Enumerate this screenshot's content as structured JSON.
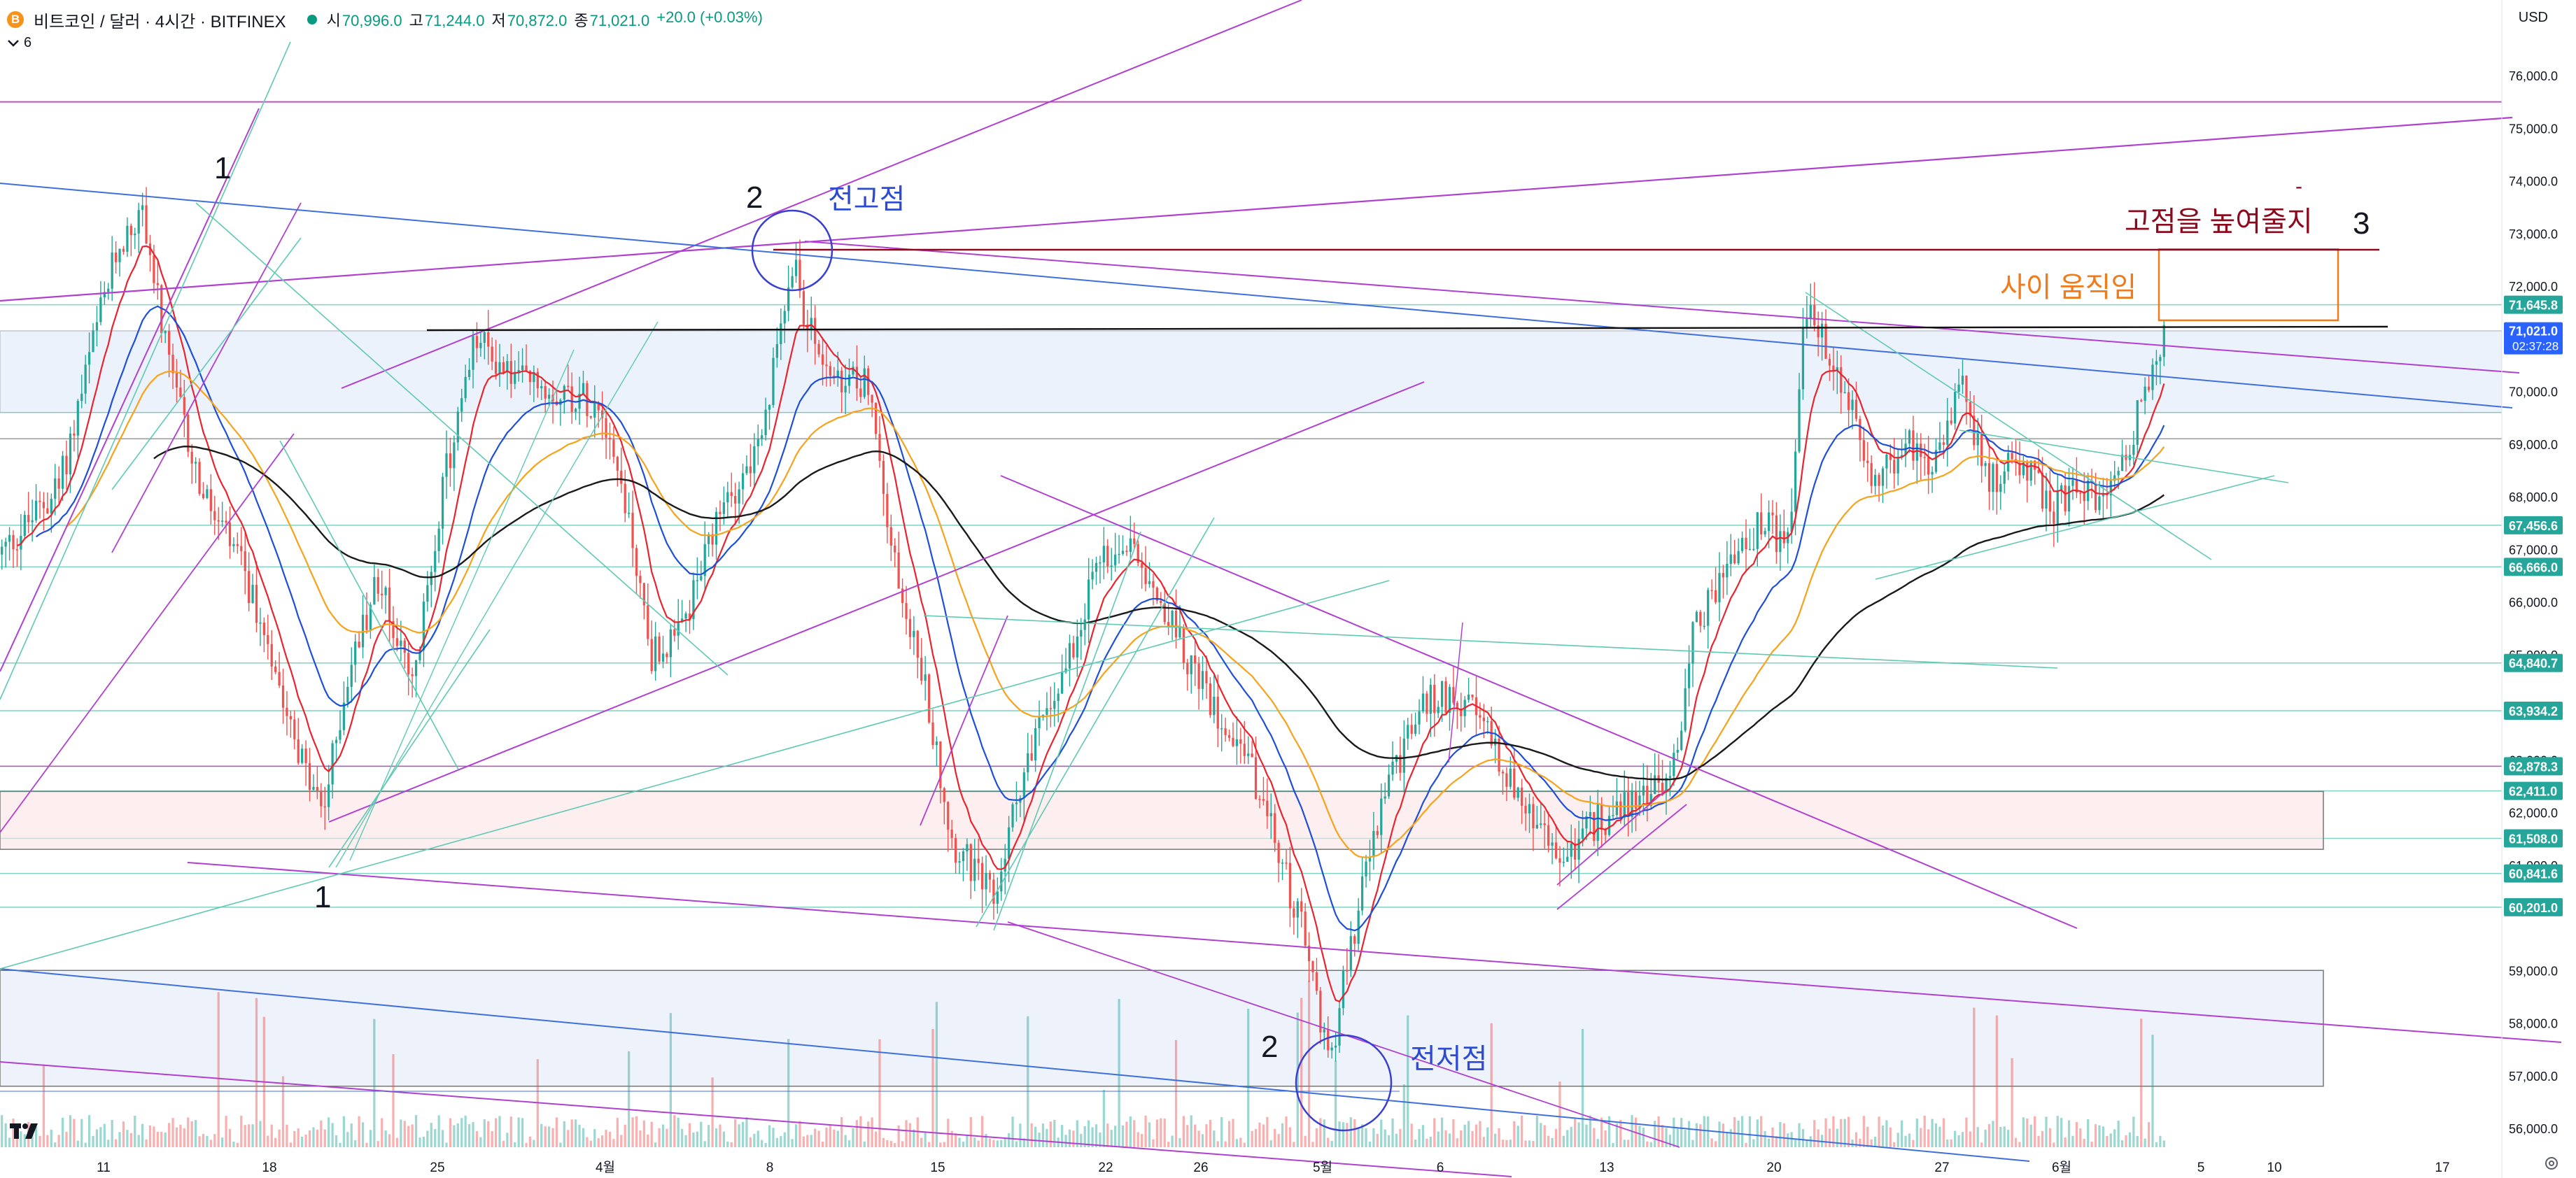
{
  "header": {
    "coin_glyph": "B",
    "title": "비트코인 / 달러 · 4시간 · BITFINEX",
    "ohlc": [
      {
        "key": "시",
        "value": "70,996.0"
      },
      {
        "key": "고",
        "value": "71,244.0"
      },
      {
        "key": "저",
        "value": "70,872.0"
      },
      {
        "key": "종",
        "value": "71,021.0"
      }
    ],
    "change": "+20.0 (+0.03%)",
    "collapse_count": "6",
    "currency": "USD"
  },
  "y_axis": {
    "ticks": [
      "76,000.0",
      "75,000.0",
      "74,000.0",
      "73,000.0",
      "72,000.0",
      "70,000.0",
      "69,000.0",
      "68,000.0",
      "67,000.0",
      "66,000.0",
      "65,000.0",
      "63,000.0",
      "62,000.0",
      "61,000.0",
      "59,000.0",
      "58,000.0",
      "57,000.0",
      "56,000.0"
    ]
  },
  "price_badges": [
    {
      "label": "71,645.8",
      "price": 71645.8,
      "color": "#26a69a"
    },
    {
      "label": "67,456.6",
      "price": 67456.6,
      "color": "#26a69a"
    },
    {
      "label": "66,666.0",
      "price": 66666.0,
      "color": "#26a69a"
    },
    {
      "label": "64,840.7",
      "price": 64840.7,
      "color": "#26a69a"
    },
    {
      "label": "63,934.2",
      "price": 63934.2,
      "color": "#26a69a"
    },
    {
      "label": "62,878.3",
      "price": 62878.3,
      "color": "#26a69a"
    },
    {
      "label": "62,411.0",
      "price": 62411.0,
      "color": "#26a69a"
    },
    {
      "label": "61,508.0",
      "price": 61508.0,
      "color": "#26a69a"
    },
    {
      "label": "60,841.6",
      "price": 60841.6,
      "color": "#26a69a"
    },
    {
      "label": "60,201.0",
      "price": 60201.0,
      "color": "#26a69a"
    }
  ],
  "current_price": {
    "label": "71,021.0",
    "countdown": "02:37:28",
    "price": 71021.0,
    "color": "#2962ff"
  },
  "x_axis": {
    "ticks": [
      "11",
      "18",
      "25",
      "4월",
      "8",
      "15",
      "22",
      "26",
      "5월",
      "6",
      "13",
      "20",
      "27",
      "6월",
      "5",
      "10",
      "17"
    ]
  },
  "annotations": {
    "wave_1_top": "1",
    "wave_1_bottom": "1",
    "wave_2_top": "2",
    "wave_2_bottom": "2",
    "prev_high": "전고점",
    "prev_low": "전저점",
    "raise_high": "고점을 높여줄지",
    "wave_3": "3",
    "dash": "-",
    "range_move": "사이 움직임"
  },
  "colors": {
    "up": "#26a69a",
    "down": "#ef5350",
    "ema_red": "#e8242f",
    "ema_blue": "#1e4fd6",
    "ema_orange": "#f7a21b",
    "ema_black": "#1a1a1a",
    "purple": "#b040d0",
    "teal": "#5fc9b3",
    "blue_line": "#3f6fdc",
    "dark_red": "#8b0a1e",
    "orange_box": "#ef7b1a",
    "circle": "#3a3fd0"
  },
  "chart_data": {
    "type": "candlestick",
    "symbol": "BTCUSD",
    "ylim": [
      55800,
      76800
    ],
    "candle_count": 570,
    "indicators": [
      "EMA (red)",
      "EMA (blue)",
      "EMA (orange)",
      "EMA (black)",
      "Volume"
    ]
  }
}
